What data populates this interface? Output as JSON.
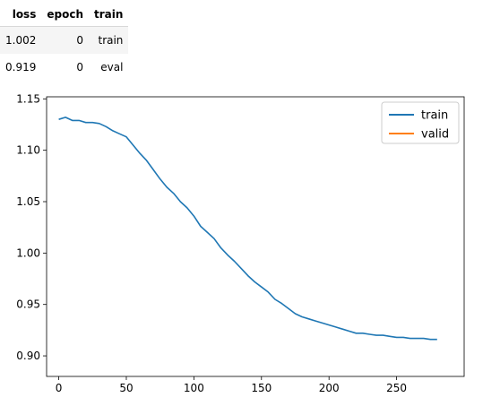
{
  "table": {
    "columns": [
      "loss",
      "epoch",
      "train"
    ],
    "rows": [
      [
        "1.002",
        "0",
        "train"
      ],
      [
        "0.919",
        "0",
        "eval"
      ]
    ]
  },
  "chart_data": {
    "type": "line",
    "xlim": [
      -9,
      300
    ],
    "ylim": [
      0.88,
      1.152
    ],
    "xticks": [
      0,
      50,
      100,
      150,
      200,
      250
    ],
    "yticks": [
      0.9,
      0.95,
      1.0,
      1.05,
      1.1,
      1.15
    ],
    "ytick_labels": [
      "0.90",
      "0.95",
      "1.00",
      "1.05",
      "1.10",
      "1.15"
    ],
    "legend_position": "upper right",
    "grid": false,
    "series": [
      {
        "name": "train",
        "color": "#1f77b4",
        "x": [
          0,
          5,
          10,
          15,
          20,
          25,
          30,
          35,
          40,
          45,
          50,
          55,
          60,
          65,
          70,
          75,
          80,
          85,
          90,
          95,
          100,
          105,
          110,
          115,
          120,
          125,
          130,
          135,
          140,
          145,
          150,
          155,
          160,
          165,
          170,
          175,
          180,
          185,
          190,
          195,
          200,
          205,
          210,
          215,
          220,
          225,
          230,
          235,
          240,
          245,
          250,
          255,
          260,
          265,
          270,
          275,
          280
        ],
        "y": [
          1.13,
          1.132,
          1.129,
          1.129,
          1.127,
          1.127,
          1.126,
          1.123,
          1.119,
          1.116,
          1.113,
          1.105,
          1.097,
          1.09,
          1.081,
          1.072,
          1.064,
          1.058,
          1.05,
          1.044,
          1.036,
          1.026,
          1.02,
          1.014,
          1.005,
          0.998,
          0.992,
          0.985,
          0.978,
          0.972,
          0.967,
          0.962,
          0.955,
          0.951,
          0.946,
          0.941,
          0.938,
          0.936,
          0.934,
          0.932,
          0.93,
          0.928,
          0.926,
          0.924,
          0.922,
          0.922,
          0.921,
          0.92,
          0.92,
          0.919,
          0.918,
          0.918,
          0.917,
          0.917,
          0.917,
          0.916,
          0.916
        ]
      },
      {
        "name": "valid",
        "color": "#ff7f0e",
        "x": [],
        "y": []
      }
    ]
  }
}
